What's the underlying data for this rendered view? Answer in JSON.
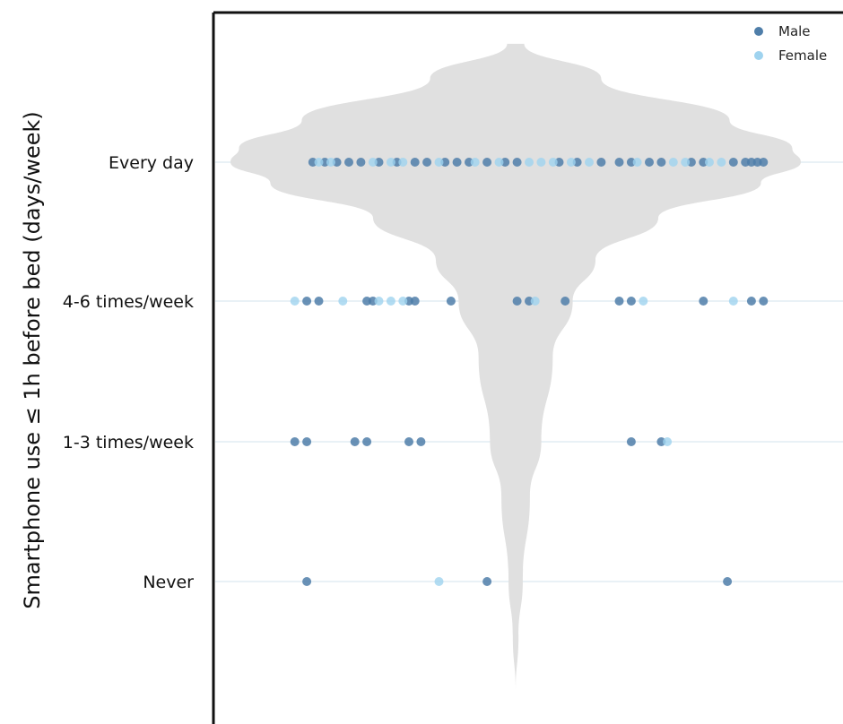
{
  "chart_data": {
    "type": "scatter",
    "title": "",
    "xlabel": "",
    "ylabel": "Smartphone use ≤ 1h before bed (days/week)",
    "categories": [
      "Every day",
      "4-6 times/week",
      "1-3 times/week",
      "Never"
    ],
    "x_range": [
      0,
      1
    ],
    "grid": "horizontal, faint",
    "legend_placement": "top-right",
    "violin_density": [
      {
        "y": 4.85,
        "width": 0.03
      },
      {
        "y": 4.6,
        "width": 0.3
      },
      {
        "y": 4.3,
        "width": 0.75
      },
      {
        "y": 4.1,
        "width": 0.97
      },
      {
        "y": 4.0,
        "width": 1.0
      },
      {
        "y": 3.85,
        "width": 0.86
      },
      {
        "y": 3.6,
        "width": 0.5
      },
      {
        "y": 3.3,
        "width": 0.28
      },
      {
        "y": 3.0,
        "width": 0.2
      },
      {
        "y": 2.6,
        "width": 0.13
      },
      {
        "y": 2.0,
        "width": 0.09
      },
      {
        "y": 1.6,
        "width": 0.05
      },
      {
        "y": 1.0,
        "width": 0.025
      },
      {
        "y": 0.6,
        "width": 0.01
      },
      {
        "y": 0.2,
        "width": 0.0
      }
    ],
    "series": [
      {
        "name": "Male",
        "color": "#4f7ea9",
        "points": [
          {
            "x": 0.14,
            "category": "Every day"
          },
          {
            "x": 0.16,
            "category": "Every day"
          },
          {
            "x": 0.18,
            "category": "Every day"
          },
          {
            "x": 0.2,
            "category": "Every day"
          },
          {
            "x": 0.22,
            "category": "Every day"
          },
          {
            "x": 0.25,
            "category": "Every day"
          },
          {
            "x": 0.28,
            "category": "Every day"
          },
          {
            "x": 0.31,
            "category": "Every day"
          },
          {
            "x": 0.33,
            "category": "Every day"
          },
          {
            "x": 0.36,
            "category": "Every day"
          },
          {
            "x": 0.38,
            "category": "Every day"
          },
          {
            "x": 0.4,
            "category": "Every day"
          },
          {
            "x": 0.43,
            "category": "Every day"
          },
          {
            "x": 0.46,
            "category": "Every day"
          },
          {
            "x": 0.48,
            "category": "Every day"
          },
          {
            "x": 0.55,
            "category": "Every day"
          },
          {
            "x": 0.58,
            "category": "Every day"
          },
          {
            "x": 0.62,
            "category": "Every day"
          },
          {
            "x": 0.65,
            "category": "Every day"
          },
          {
            "x": 0.67,
            "category": "Every day"
          },
          {
            "x": 0.7,
            "category": "Every day"
          },
          {
            "x": 0.72,
            "category": "Every day"
          },
          {
            "x": 0.77,
            "category": "Every day"
          },
          {
            "x": 0.79,
            "category": "Every day"
          },
          {
            "x": 0.84,
            "category": "Every day"
          },
          {
            "x": 0.86,
            "category": "Every day"
          },
          {
            "x": 0.87,
            "category": "Every day"
          },
          {
            "x": 0.88,
            "category": "Every day"
          },
          {
            "x": 0.89,
            "category": "Every day"
          },
          {
            "x": 0.13,
            "category": "4-6 times/week"
          },
          {
            "x": 0.15,
            "category": "4-6 times/week"
          },
          {
            "x": 0.23,
            "category": "4-6 times/week"
          },
          {
            "x": 0.24,
            "category": "4-6 times/week"
          },
          {
            "x": 0.3,
            "category": "4-6 times/week"
          },
          {
            "x": 0.31,
            "category": "4-6 times/week"
          },
          {
            "x": 0.37,
            "category": "4-6 times/week"
          },
          {
            "x": 0.48,
            "category": "4-6 times/week"
          },
          {
            "x": 0.5,
            "category": "4-6 times/week"
          },
          {
            "x": 0.56,
            "category": "4-6 times/week"
          },
          {
            "x": 0.65,
            "category": "4-6 times/week"
          },
          {
            "x": 0.67,
            "category": "4-6 times/week"
          },
          {
            "x": 0.79,
            "category": "4-6 times/week"
          },
          {
            "x": 0.87,
            "category": "4-6 times/week"
          },
          {
            "x": 0.89,
            "category": "4-6 times/week"
          },
          {
            "x": 0.11,
            "category": "1-3 times/week"
          },
          {
            "x": 0.13,
            "category": "1-3 times/week"
          },
          {
            "x": 0.21,
            "category": "1-3 times/week"
          },
          {
            "x": 0.23,
            "category": "1-3 times/week"
          },
          {
            "x": 0.3,
            "category": "1-3 times/week"
          },
          {
            "x": 0.32,
            "category": "1-3 times/week"
          },
          {
            "x": 0.67,
            "category": "1-3 times/week"
          },
          {
            "x": 0.72,
            "category": "1-3 times/week"
          },
          {
            "x": 0.13,
            "category": "Never"
          },
          {
            "x": 0.43,
            "category": "Never"
          },
          {
            "x": 0.83,
            "category": "Never"
          }
        ]
      },
      {
        "name": "Female",
        "color": "#9fd3ef",
        "points": [
          {
            "x": 0.15,
            "category": "Every day"
          },
          {
            "x": 0.17,
            "category": "Every day"
          },
          {
            "x": 0.24,
            "category": "Every day"
          },
          {
            "x": 0.27,
            "category": "Every day"
          },
          {
            "x": 0.29,
            "category": "Every day"
          },
          {
            "x": 0.35,
            "category": "Every day"
          },
          {
            "x": 0.41,
            "category": "Every day"
          },
          {
            "x": 0.45,
            "category": "Every day"
          },
          {
            "x": 0.5,
            "category": "Every day"
          },
          {
            "x": 0.52,
            "category": "Every day"
          },
          {
            "x": 0.54,
            "category": "Every day"
          },
          {
            "x": 0.57,
            "category": "Every day"
          },
          {
            "x": 0.6,
            "category": "Every day"
          },
          {
            "x": 0.68,
            "category": "Every day"
          },
          {
            "x": 0.74,
            "category": "Every day"
          },
          {
            "x": 0.76,
            "category": "Every day"
          },
          {
            "x": 0.8,
            "category": "Every day"
          },
          {
            "x": 0.82,
            "category": "Every day"
          },
          {
            "x": 0.11,
            "category": "4-6 times/week"
          },
          {
            "x": 0.19,
            "category": "4-6 times/week"
          },
          {
            "x": 0.25,
            "category": "4-6 times/week"
          },
          {
            "x": 0.27,
            "category": "4-6 times/week"
          },
          {
            "x": 0.29,
            "category": "4-6 times/week"
          },
          {
            "x": 0.51,
            "category": "4-6 times/week"
          },
          {
            "x": 0.69,
            "category": "4-6 times/week"
          },
          {
            "x": 0.84,
            "category": "4-6 times/week"
          },
          {
            "x": 0.73,
            "category": "1-3 times/week"
          },
          {
            "x": 0.35,
            "category": "Never"
          }
        ]
      }
    ]
  }
}
